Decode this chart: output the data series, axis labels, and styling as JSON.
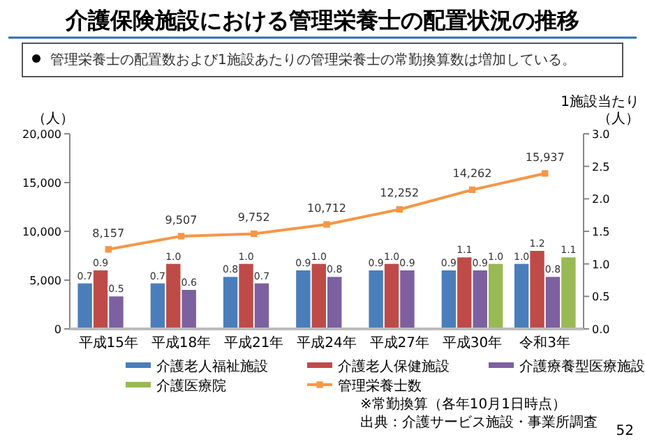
{
  "chart_data": {
    "type": "bar",
    "title": "介護保険施設における管理栄養士の配置状況の推移",
    "subtitle": "管理栄養士の配置数および1施設あたりの管理栄養士の常勤換算数は増加している。",
    "categories": [
      "平成15年",
      "平成18年",
      "平成21年",
      "平成24年",
      "平成27年",
      "平成30年",
      "令和3年"
    ],
    "series": [
      {
        "name": "介護老人福祉施設",
        "color": "#4a7ebb",
        "axis": "y2",
        "values": [
          0.7,
          0.7,
          0.8,
          0.9,
          0.9,
          0.9,
          1.0
        ],
        "value_labels": [
          "0.7",
          "0.7",
          "0.8",
          "0.9",
          "0.9",
          "0.9",
          "1.0"
        ]
      },
      {
        "name": "介護老人保健施設",
        "color": "#be4b48",
        "axis": "y2",
        "values": [
          0.9,
          1.0,
          1.0,
          1.0,
          1.0,
          1.1,
          1.2
        ],
        "value_labels": [
          "0.9",
          "1.0",
          "1.0",
          "1.0",
          "1.0",
          "1.1",
          "1.2"
        ]
      },
      {
        "name": "介護療養型医療施設",
        "color": "#7d60a0",
        "axis": "y2",
        "values": [
          0.5,
          0.6,
          0.7,
          0.8,
          0.9,
          0.9,
          0.8
        ],
        "value_labels": [
          "0.5",
          "0.6",
          "0.7",
          "0.8",
          "0.9",
          "0.9",
          "0.8"
        ]
      },
      {
        "name": "介護医療院",
        "color": "#98b954",
        "axis": "y2",
        "values": [
          null,
          null,
          null,
          null,
          null,
          1.0,
          1.1
        ],
        "value_labels": [
          null,
          null,
          null,
          null,
          null,
          "1.0",
          "1.1"
        ]
      },
      {
        "name": "管理栄養士数",
        "type": "line",
        "color": "#f79646",
        "marker": "square",
        "values": [
          8157,
          9507,
          9752,
          10712,
          12252,
          14262,
          15937
        ],
        "value_labels": [
          "8,157",
          "9,507",
          "9,752",
          "10,712",
          "12,252",
          "14,262",
          "15,937"
        ]
      }
    ],
    "ylabel": "（人）",
    "y2label": "1施設当たり（人）",
    "ylim": [
      0,
      20000
    ],
    "yticks": [
      {
        "value": 0,
        "label": "0"
      },
      {
        "value": 5000,
        "label": "5,000"
      },
      {
        "value": 10000,
        "label": "10,000"
      },
      {
        "value": 15000,
        "label": "15,000"
      },
      {
        "value": 20000,
        "label": "20,000"
      }
    ],
    "y2lim": [
      0,
      3
    ],
    "y2ticks": [
      {
        "value": 0,
        "label": "0.0"
      },
      {
        "value": 0.5,
        "label": "0.5"
      },
      {
        "value": 1,
        "label": "1.0"
      },
      {
        "value": 1.5,
        "label": "1.5"
      },
      {
        "value": 2,
        "label": "2.0"
      },
      {
        "value": 2.5,
        "label": "2.5"
      },
      {
        "value": 3,
        "label": "3.0"
      }
    ],
    "legend": "bottom",
    "annotations": [
      "※常勤換算（各年10月1日時点）",
      "出典：介護サービス施設・事業所調査",
      "52"
    ]
  }
}
